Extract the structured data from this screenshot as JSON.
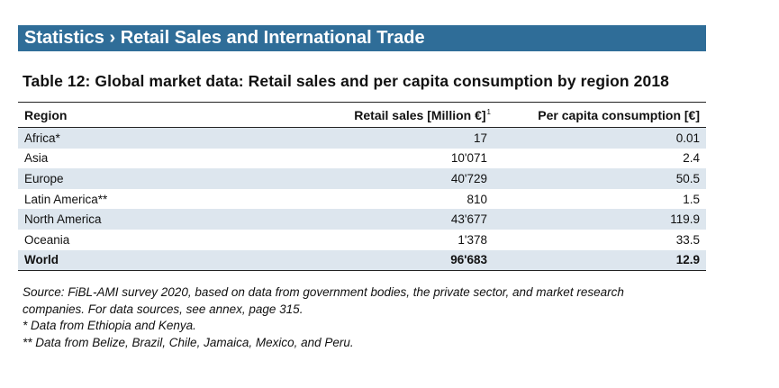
{
  "section": {
    "banner_title": "Statistics › Retail Sales and International Trade"
  },
  "table": {
    "caption": "Table 12: Global market data: Retail sales and per capita consumption by region 2018",
    "headers": {
      "region": "Region",
      "retail_sales": "Retail sales [Million €]",
      "retail_sales_footnote_mark": "1",
      "per_capita": "Per capita consumption [€]"
    },
    "rows": [
      {
        "region": "Africa*",
        "retail_sales": "17",
        "per_capita": "0.01"
      },
      {
        "region": "Asia",
        "retail_sales": "10'071",
        "per_capita": "2.4"
      },
      {
        "region": "Europe",
        "retail_sales": "40'729",
        "per_capita": "50.5"
      },
      {
        "region": "Latin America**",
        "retail_sales": "810",
        "per_capita": "1.5"
      },
      {
        "region": "North America",
        "retail_sales": "43'677",
        "per_capita": "119.9"
      },
      {
        "region": "Oceania",
        "retail_sales": "1'378",
        "per_capita": "33.5"
      }
    ],
    "total": {
      "region": "World",
      "retail_sales": "96'683",
      "per_capita": "12.9"
    }
  },
  "notes": {
    "source_line1": "Source: FiBL-AMI survey 2020, based on data from government bodies, the private sector, and market research",
    "source_line2": "companies. For data sources, see annex, page 315.",
    "footnote_africa": "* Data from Ethiopia and Kenya.",
    "footnote_latam": "** Data from Belize, Brazil, Chile, Jamaica, Mexico, and Peru."
  },
  "colors": {
    "banner_bg": "#2f6d98",
    "row_shade": "#dde6ee"
  }
}
